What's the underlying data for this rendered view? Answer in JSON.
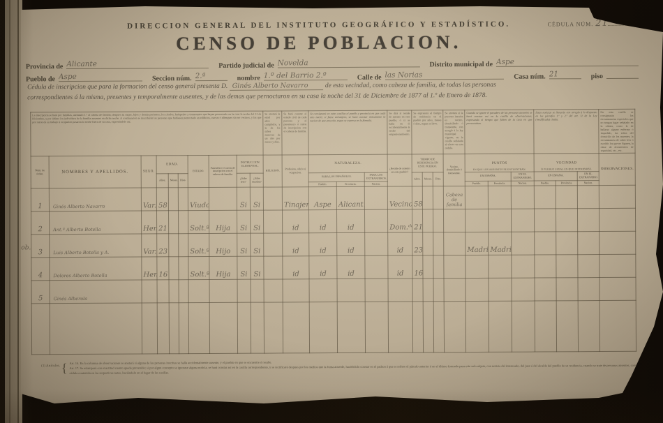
{
  "header": {
    "institution": "DIRECCION GENERAL DEL INSTITUTO GEOGRÁFICO Y ESTADÍSTICO.",
    "cedula_label": "CÉDULA NÚM.",
    "cedula_value": "21",
    "title": "CENSO DE POBLACION."
  },
  "fields": {
    "provincia_label": "Provincia de",
    "provincia_value": "Alicante",
    "partido_label": "Partido judicial de",
    "partido_value": "Novelda",
    "distrito_label": "Distrito municipal de",
    "distrito_value": "Aspe",
    "pueblo_label": "Pueblo de",
    "pueblo_value": "Aspe",
    "seccion_label": "Seccion núm.",
    "seccion_value": "2.ª",
    "nombre_label": "nombre",
    "nombre_value": "1.º del Barrio 2.º",
    "calle_label": "Calle de",
    "calle_value": "las Norias",
    "casa_label": "Casa núm.",
    "casa_value": "21",
    "piso_label": "piso",
    "piso_value": ""
  },
  "intro": {
    "pre": "Cédula de inscripcion que para la formacion del censo general presenta D.",
    "nombre": "Ginés Alberto Navarro",
    "post": "de esta vecindad, como cabeza de familia, de todas las personas",
    "line2": "correspondientes á la misma, presentes y temporalmente ausentes, y de las demas que pernoctaron en su casa la noche del 31 de Diciembre de 1877 al 1.º de Enero de 1878."
  },
  "instructions": [
    "La inscripcion se hará por familias, anotando 1.º al cabeza de familia; despues su mujer, hijos y demás parientes; los criados, huéspedes y transeuntes que hayan pernoctado en la casa la noche del 31 de Diciembre, y por último los individuos de la familia ausentes en dicha noche. A continuacion se inscribirán las personas que hubiesen pernoctado en edificios, cuevas ó albergues sin ser vecinos, y las que por razon de su trabajo ú ocupacion pasaron la noche fuera de su casa, expresándolo así.",
    "Se anotará la edad por años cumplidos, y la de los niños menores de un año por meses y dias.",
    "Se hará constar el estado civil de cada persona y el parentesco ó razon de inscripcion con el cabeza de familia.",
    "Se consignará en estas casillas el pueblo y provincia en que cada uno nació; si fuese extranjero, se hará constar únicamente la nacion de que proceda, segun se expresa en la fórmula.",
    "Se dirá si reside de asiento en este pueblo, ó si se halla en él accidentalmente la noche del empadronamiento.",
    "Se expresará el tiempo de residencia en el pueblo por años, meses ó dias, segun se lleve.",
    "Se anotará si la persona inscrita es vecino, domiciliado ó transeunte, con arreglo á la ley municipal vigente, en la casilla señalada al efecto en esta cédula.",
    "Cuando se ignore el paradero de las personas ausentes se hará constar así en la casilla de observaciones, expresando el tiempo que falten de la casa en que pernoctaban.",
    "Estas noticias se llenarán con arreglo á lo dispuesto en los párrafos 1.º y 2.º del art. 11 de la Ley (modificada) citada.",
    "En esta casilla se consignarán las circunstancias especiales que no tengan lugar señalado en la cédula, como la de hallarse alguno enfermo ó impedido, las señas del domicilio de los ausentes, la circunstancia de saber leer ó escribir los que no figuren, la clase de documentos de seguridad, etc., etc."
  ],
  "table": {
    "headers": {
      "num": "Núm. de órden.",
      "nombres": "NOMBRES Y APELLIDOS.",
      "sexo": "SEXO.",
      "edad": "EDAD.",
      "anos": "Años.",
      "meses": "Meses.",
      "dias": "Dias.",
      "estado": "ESTADO.",
      "parentesco": "Parentesco ó razon de inscripcion con el cabeza de familia.",
      "instruccion": "INSTRUCCION ELEMENTAL.",
      "leer": "¿Sabe leer?",
      "escribir": "¿Sabe escribir?",
      "religion": "RELIGION.",
      "profesion": "Profesion, oficio ú ocupacion.",
      "naturaleza": "NATURALEZA.",
      "espanoles": "PARA LOS ESPAÑOLES.",
      "extranjeros": "PARA LOS EXTRANJEROS.",
      "pueblo": "Pueblo.",
      "provincia": "Provincia.",
      "nacion": "Nacion.",
      "reside": "¿Reside de asiento en este pueblo?",
      "tiempo": "TIEMPO DE RESIDENCIA EN ESTE PUEBLO.",
      "condicion": "Vecino, domiciliado ó transeunte.",
      "puntos": "PUNTOS",
      "puntos_sub": "EN QUE LOS AUSENTES SE ENCUENTRAN.",
      "en_espana": "EN ESPAÑA.",
      "en_extranjero": "EN EL EXTRANJERO.",
      "vecindad": "VECINDAD",
      "vecindad_sub": "Ó PUEBLO LEGAL EN QUE INSCRIBIRSE.",
      "observaciones": "OBSERVACIONES."
    },
    "rows": [
      {
        "num": "1",
        "nombre": "Ginés Alberto Navarro",
        "sexo": "Var.",
        "anos": "58",
        "meses": "",
        "dias": "",
        "estado": "Viudo",
        "parentesco": "",
        "leer": "Si",
        "escribir": "Si",
        "religion": "",
        "profesion": "Tinajero",
        "nat_pueblo": "Aspe",
        "nat_prov": "Alicant.",
        "nat_nacion": "",
        "reside": "Vecino",
        "res_anos": "58",
        "res_meses": "",
        "res_dias": "",
        "condicion": "Cabeza de familia",
        "pe_pueblo": "",
        "pe_prov": "",
        "pe_nacion": "",
        "ve_pueblo": "",
        "ve_prov": "",
        "ve_nacion": "",
        "obs": ""
      },
      {
        "num": "2",
        "nombre": "Ant.ª Alberto Botella",
        "sexo": "Hem.",
        "anos": "21",
        "meses": "",
        "dias": "",
        "estado": "Solt.ª",
        "parentesco": "Hija",
        "leer": "Si",
        "escribir": "Si",
        "religion": "",
        "profesion": "id",
        "nat_pueblo": "id",
        "nat_prov": "id",
        "nat_nacion": "",
        "reside": "Dom.ᵈᵃ",
        "res_anos": "21",
        "res_meses": "",
        "res_dias": "",
        "condicion": "",
        "pe_pueblo": "",
        "pe_prov": "",
        "pe_nacion": "",
        "ve_pueblo": "",
        "ve_prov": "",
        "ve_nacion": "",
        "obs": ""
      },
      {
        "num": "3",
        "nombre": "Luis Alberto Botella y A.",
        "sexo": "Var.",
        "anos": "23",
        "meses": "",
        "dias": "",
        "estado": "Solt.º",
        "parentesco": "Hijo",
        "leer": "Si",
        "escribir": "Si",
        "religion": "",
        "profesion": "id",
        "nat_pueblo": "id",
        "nat_prov": "id",
        "nat_nacion": "",
        "reside": "id",
        "res_anos": "23",
        "res_meses": "",
        "res_dias": "",
        "condicion": "",
        "pe_pueblo": "Madrid",
        "pe_prov": "Madrid",
        "pe_nacion": "",
        "ve_pueblo": "",
        "ve_prov": "",
        "ve_nacion": "",
        "obs": ""
      },
      {
        "num": "4",
        "nombre": "Dolores Alberto Botella",
        "sexo": "Hem.",
        "anos": "16",
        "meses": "",
        "dias": "",
        "estado": "Solt.ª",
        "parentesco": "Hija",
        "leer": "Si",
        "escribir": "Si",
        "religion": "",
        "profesion": "id",
        "nat_pueblo": "id",
        "nat_prov": "id",
        "nat_nacion": "",
        "reside": "id",
        "res_anos": "16",
        "res_meses": "",
        "res_dias": "",
        "condicion": "",
        "pe_pueblo": "",
        "pe_prov": "",
        "pe_nacion": "",
        "ve_pueblo": "",
        "ve_prov": "",
        "ve_nacion": "",
        "obs": ""
      },
      {
        "num": "5",
        "nombre": "Ginés Alberola",
        "sexo": "",
        "anos": "",
        "meses": "",
        "dias": "",
        "estado": "",
        "parentesco": "",
        "leer": "",
        "escribir": "",
        "religion": "",
        "profesion": "",
        "nat_pueblo": "",
        "nat_prov": "",
        "nat_nacion": "",
        "reside": "",
        "res_anos": "",
        "res_meses": "",
        "res_dias": "",
        "condicion": "",
        "pe_pueblo": "",
        "pe_prov": "",
        "pe_nacion": "",
        "ve_pueblo": "",
        "ve_prov": "",
        "ve_nacion": "",
        "obs": ""
      }
    ]
  },
  "margin_note": "ob.",
  "footnotes": {
    "label": "(1) Artículos.",
    "lines": [
      "Art. 16. En la columna de observaciones se anotará si alguna de las personas inscritas se halla accidentalmente ausente, y el pueblo en que se encuentre ó resulte.",
      "Art. 17. Se estampará con exactitud cuanto queda prevenido; si por algun concepto se ignorase alguna noticia, se hará constar así en la casilla correspondiente, y se rectificará despues por los medios que la Junta acuerde, haciéndolo constar en el padron á que se refiere el párrafo anterior ó en el último formado para este solo objeto, con noticia del interesado, del juez ó del alcalde del pueblo de su residencia, cuando se trate de personas ausentes, consignándolo todo en el libro registro que para dicho objeto se lleve, con expresion del dia en que se verifique. El resultado quedará por fin",
      "cédula contenida en las respectivas notas, haciéndolo en el lugar de las casillas."
    ]
  }
}
